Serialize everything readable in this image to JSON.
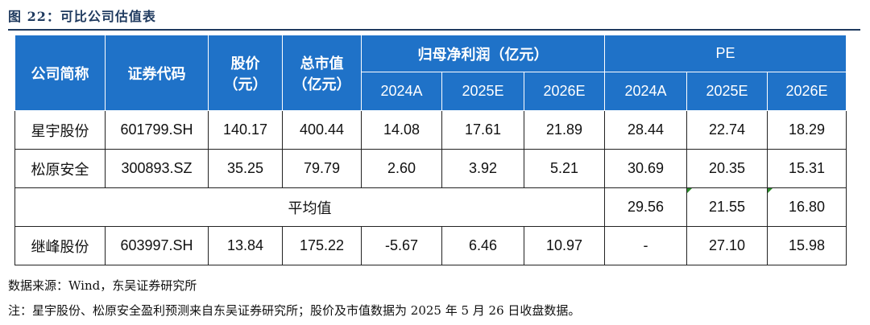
{
  "figure": {
    "title": "图 22：可比公司估值表"
  },
  "table": {
    "headers": {
      "company": "公司简称",
      "code": "证券代码",
      "price_line1": "股价",
      "price_line2": "（元）",
      "mktcap_line1": "总市值",
      "mktcap_line2": "（亿元）",
      "profit_group": "归母净利润（亿元）",
      "pe_group": "PE",
      "years": [
        "2024A",
        "2025E",
        "2026E"
      ]
    },
    "rows": [
      {
        "company": "星宇股份",
        "code": "601799.SH",
        "price": "140.17",
        "mktcap": "400.44",
        "profit": [
          "14.08",
          "17.61",
          "21.89"
        ],
        "pe": [
          "28.44",
          "22.74",
          "18.29"
        ]
      },
      {
        "company": "松原安全",
        "code": "300893.SZ",
        "price": "35.25",
        "mktcap": "79.79",
        "profit": [
          "2.60",
          "3.92",
          "5.21"
        ],
        "pe": [
          "30.69",
          "20.35",
          "15.31"
        ]
      }
    ],
    "average": {
      "label": "平均值",
      "pe": [
        "29.56",
        "21.55",
        "16.80"
      ]
    },
    "target": {
      "company": "继峰股份",
      "code": "603997.SH",
      "price": "13.84",
      "mktcap": "175.22",
      "profit": [
        "-5.67",
        "6.46",
        "10.97"
      ],
      "pe": [
        "-",
        "27.10",
        "15.98"
      ]
    }
  },
  "notes": {
    "source": "数据来源：Wind，东吴证券研究所",
    "footnote": "注：星宇股份、松原安全盈利预测来自东吴证券研究所；股价及市值数据为 2025 年 5 月 26 日收盘数据。"
  },
  "colors": {
    "header_bg": "#1f72c8",
    "title_text": "#1f3a5f"
  }
}
